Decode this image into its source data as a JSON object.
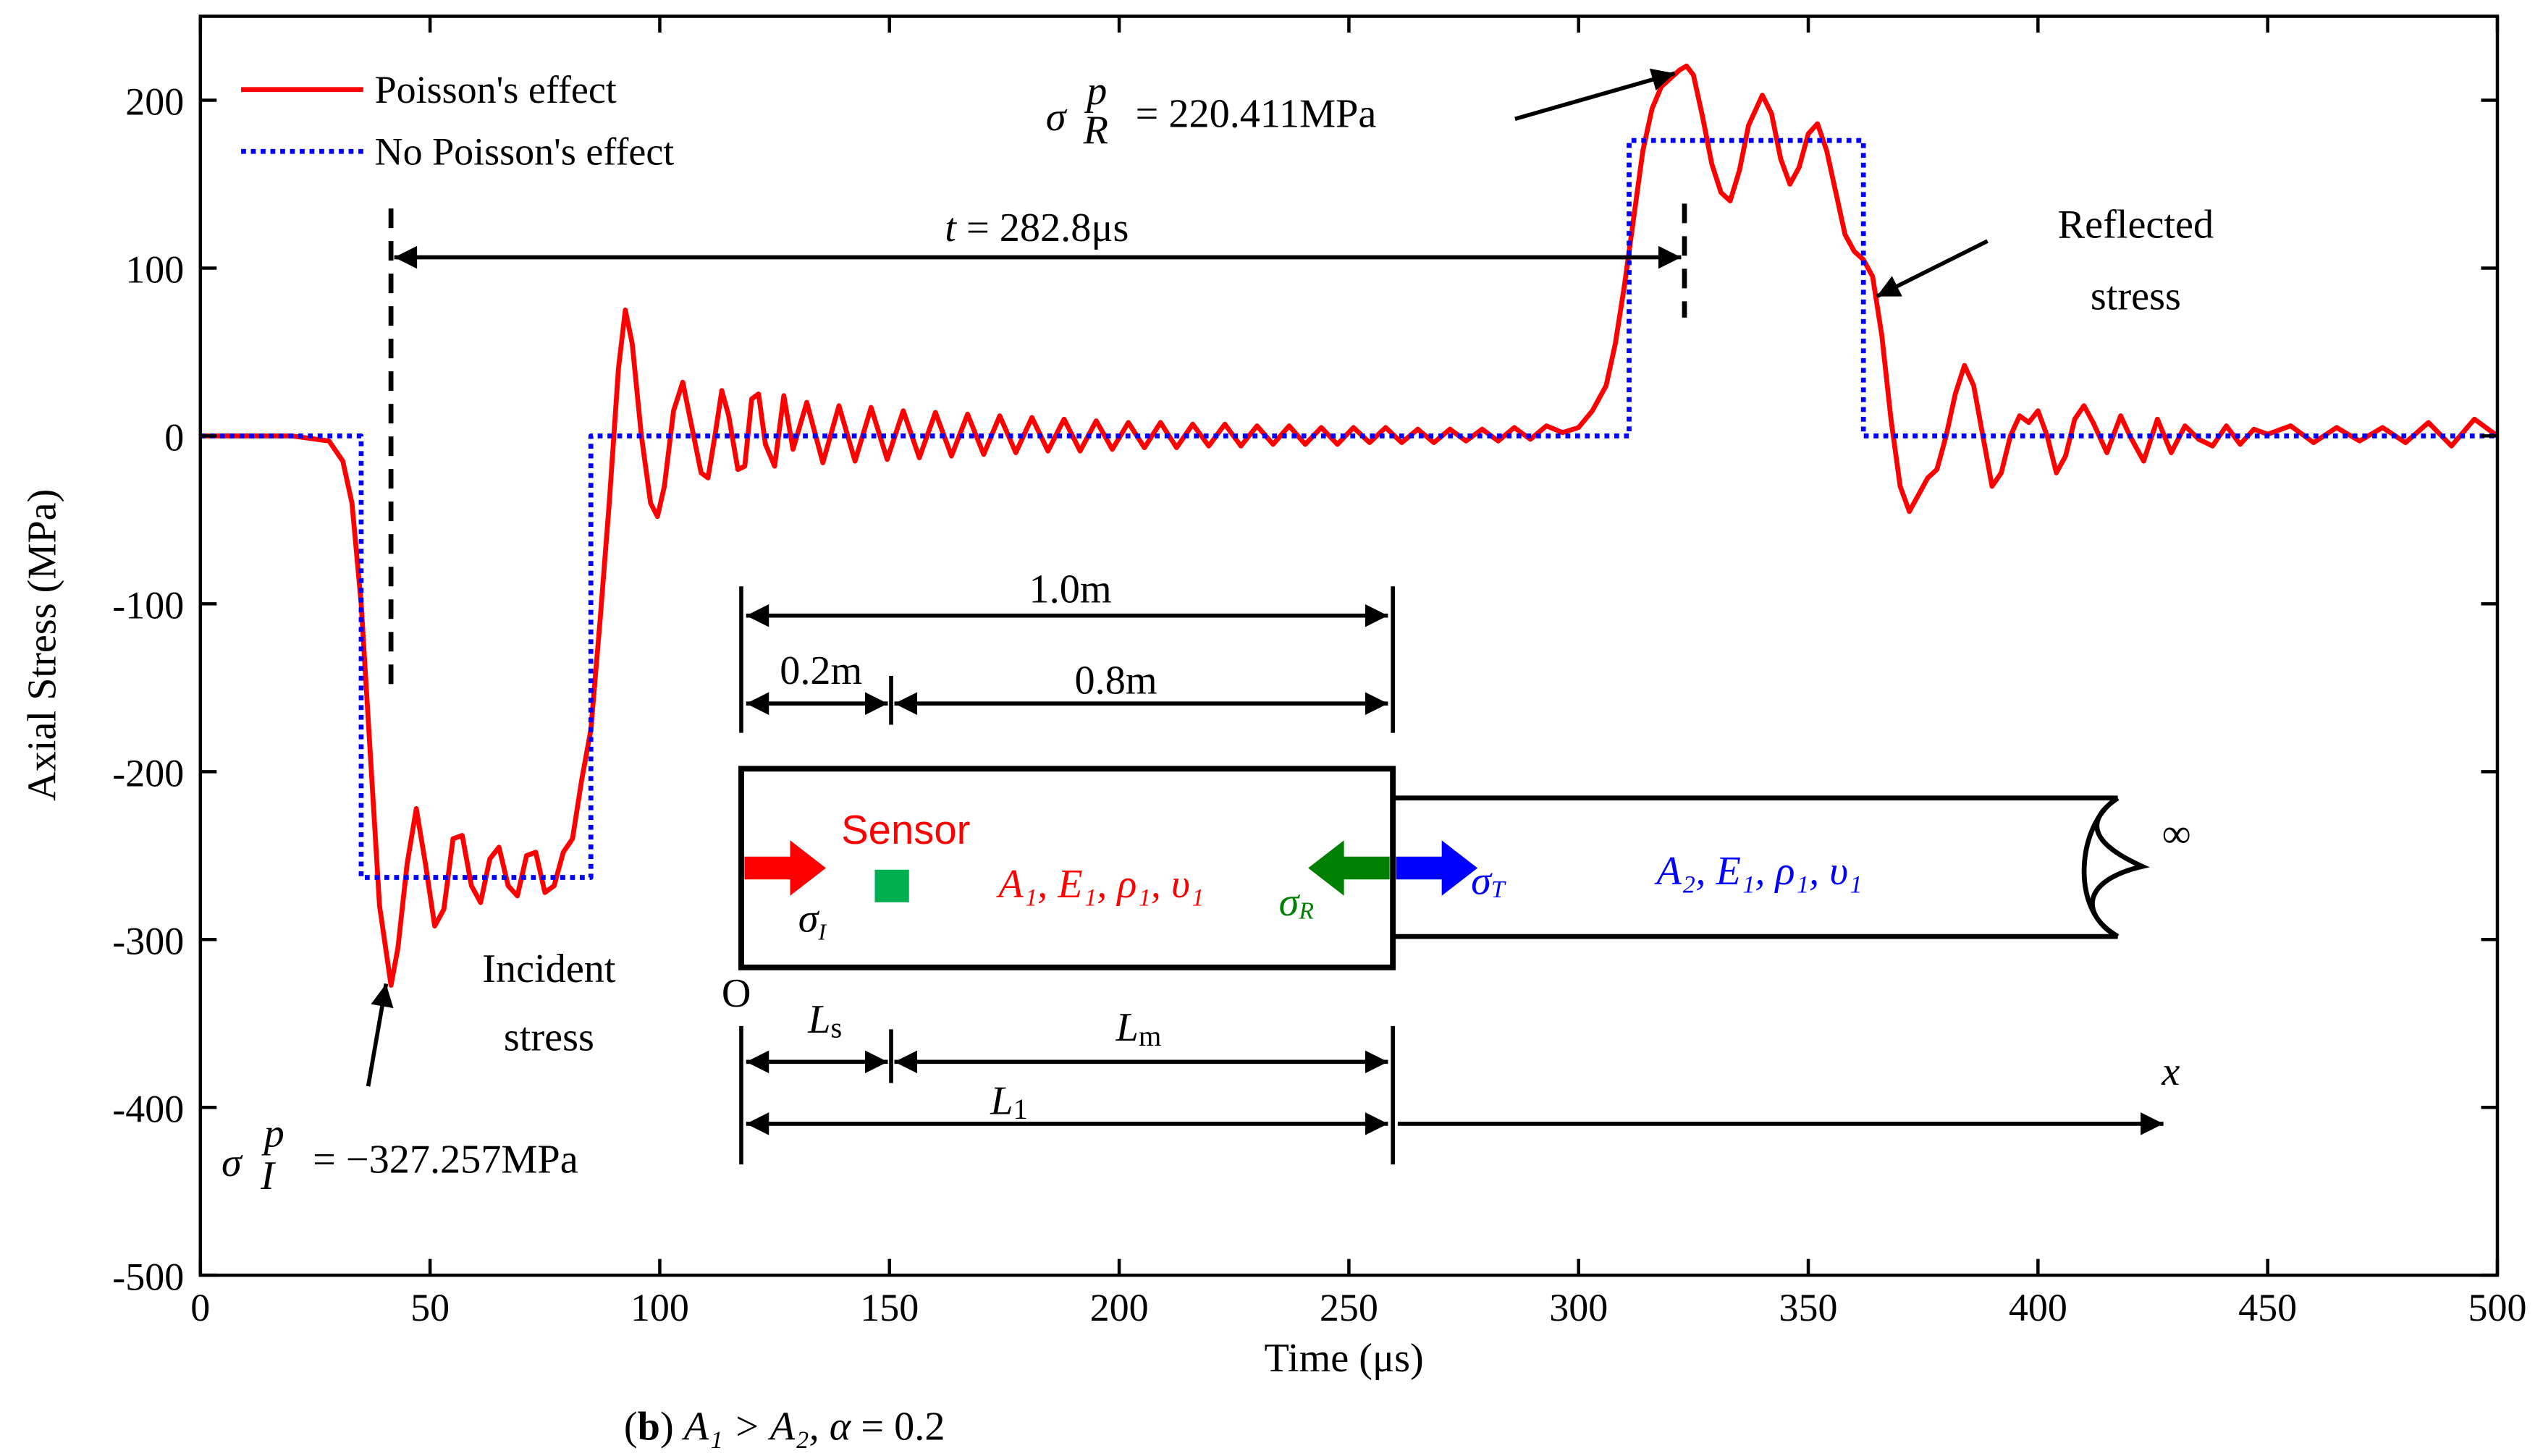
{
  "chart_data": {
    "type": "line",
    "xlabel": "Time (μs)",
    "ylabel": "Axial Stress (MPa)",
    "xlim": [
      0,
      500
    ],
    "ylim": [
      -500,
      250
    ],
    "xticks": [
      0,
      50,
      100,
      150,
      200,
      250,
      300,
      350,
      400,
      450,
      500
    ],
    "yticks": [
      -500,
      -400,
      -300,
      -200,
      -100,
      0,
      100,
      200
    ],
    "grid": false,
    "legend": "upper left",
    "series": [
      {
        "name": "Poisson's effect",
        "color": "#ff0000",
        "style": "solid",
        "x": [
          0,
          20,
          28,
          31,
          33,
          35,
          37,
          39,
          41.5,
          43,
          45,
          47,
          49,
          51,
          53,
          55,
          57,
          59,
          61,
          63,
          65,
          67,
          69,
          71,
          73,
          75,
          77,
          79,
          81,
          83,
          85,
          87,
          89,
          91,
          92.5,
          94,
          96,
          98,
          99.5,
          101,
          103,
          105,
          107,
          109,
          110.5,
          112,
          113.5,
          115,
          117,
          118.5,
          120,
          121.5,
          123,
          125,
          127,
          129,
          132,
          135.5,
          139,
          142.5,
          146,
          149.5,
          153,
          156.5,
          160,
          163.5,
          167,
          170.5,
          174,
          177.5,
          181,
          184.5,
          188,
          191.5,
          195,
          198.5,
          202,
          205.5,
          209,
          212.5,
          216,
          219.5,
          223,
          226.5,
          230,
          233.5,
          237,
          240.5,
          244,
          247.5,
          251,
          254.5,
          258,
          261.5,
          265,
          268.5,
          272,
          275.5,
          279,
          282.5,
          286,
          289.5,
          293,
          296.5,
          300,
          303,
          306,
          308,
          310,
          312,
          314,
          316,
          318,
          320,
          322,
          323.5,
          325,
          327,
          329,
          331,
          333,
          335,
          337,
          340,
          342,
          344,
          346,
          348,
          350,
          352,
          354,
          356,
          358,
          360,
          362,
          364,
          366,
          368,
          370,
          372,
          374,
          376,
          378,
          380,
          382,
          384,
          386,
          388,
          390,
          392,
          394,
          396,
          398,
          400,
          402,
          404,
          406,
          408,
          410,
          412,
          415,
          418,
          420,
          423,
          426,
          429,
          432,
          435,
          438,
          441,
          444,
          447,
          450,
          455,
          460,
          465,
          470,
          475,
          480,
          485,
          490,
          495,
          500
        ],
        "values": [
          0,
          0,
          -3,
          -15,
          -40,
          -100,
          -190,
          -280,
          -327.257,
          -305,
          -255,
          -222,
          -255,
          -292,
          -282,
          -240,
          -238,
          -268,
          -278,
          -252,
          -245,
          -268,
          -274,
          -250,
          -248,
          -272,
          -268,
          -248,
          -240,
          -205,
          -175,
          -110,
          -40,
          40,
          75,
          55,
          0,
          -40,
          -48,
          -30,
          15,
          32,
          5,
          -22,
          -25,
          0,
          27,
          12,
          -20,
          -18,
          22,
          25,
          -5,
          -18,
          24,
          -8,
          20,
          -16,
          18,
          -15,
          17,
          -14,
          15,
          -13,
          14,
          -12,
          13,
          -11,
          12,
          -10,
          11,
          -9,
          10,
          -9,
          9,
          -8,
          8,
          -7,
          8,
          -7,
          7,
          -6,
          7,
          -6,
          6,
          -5,
          6,
          -5,
          5,
          -5,
          5,
          -4,
          5,
          -4,
          4,
          -4,
          4,
          -3,
          4,
          -3,
          5,
          -2,
          6,
          2,
          5,
          15,
          30,
          55,
          90,
          130,
          170,
          195,
          208,
          213,
          218,
          220.411,
          215,
          190,
          162,
          145,
          140,
          158,
          185,
          203,
          192,
          165,
          150,
          160,
          180,
          186,
          170,
          145,
          120,
          110,
          105,
          95,
          60,
          10,
          -30,
          -45,
          -35,
          -25,
          -20,
          0,
          25,
          42,
          30,
          0,
          -30,
          -22,
          0,
          12,
          8,
          15,
          0,
          -22,
          -12,
          10,
          18,
          8,
          -10,
          12,
          0,
          -15,
          10,
          -10,
          6,
          -2,
          -6,
          6,
          -5,
          4,
          1,
          6,
          -4,
          5,
          -3,
          5,
          -4,
          8,
          -6,
          10,
          0
        ]
      },
      {
        "name": "No Poisson's effect",
        "color": "#0000ff",
        "style": "dotted",
        "x": [
          0,
          35,
          35,
          85,
          85,
          311,
          311,
          362,
          362,
          500
        ],
        "values": [
          0,
          0,
          -263,
          -263,
          0,
          0,
          176,
          176,
          0,
          0
        ]
      }
    ],
    "annotations": {
      "peak_sym": "σ",
      "peak_sub": "R",
      "peak_sup": "p",
      "peak_text": "= 220.411MPa",
      "trough_sym": "σ",
      "trough_sub": "I",
      "trough_sup": "p",
      "trough_text": "= −327.257MPa",
      "interval_t": "t",
      "interval_text": " = 282.8μs",
      "incident": [
        "Incident",
        "stress"
      ],
      "reflected": [
        "Reflected",
        "stress"
      ],
      "caption": [
        "(",
        "b",
        ") ",
        "A₁ > A₂, ",
        "α",
        " = 0.2"
      ],
      "len_total": "1.0m",
      "len_sensor": "0.2m",
      "len_rest": "0.8m",
      "sensor": "Sensor",
      "bar1_props": "A₁, E₁, ρ₁, υ₁",
      "bar2_props": "A₂, E₁, ρ₁, υ₁",
      "sigma_I": [
        "σ",
        "I"
      ],
      "sigma_R": [
        "σ",
        "R"
      ],
      "sigma_T": [
        "σ",
        "T"
      ],
      "infinity": "∞",
      "origin": "O",
      "Ls": [
        "L",
        "s"
      ],
      "Lm": [
        "L",
        "m"
      ],
      "L1": [
        "L",
        "1"
      ],
      "x_axis": "x"
    }
  }
}
